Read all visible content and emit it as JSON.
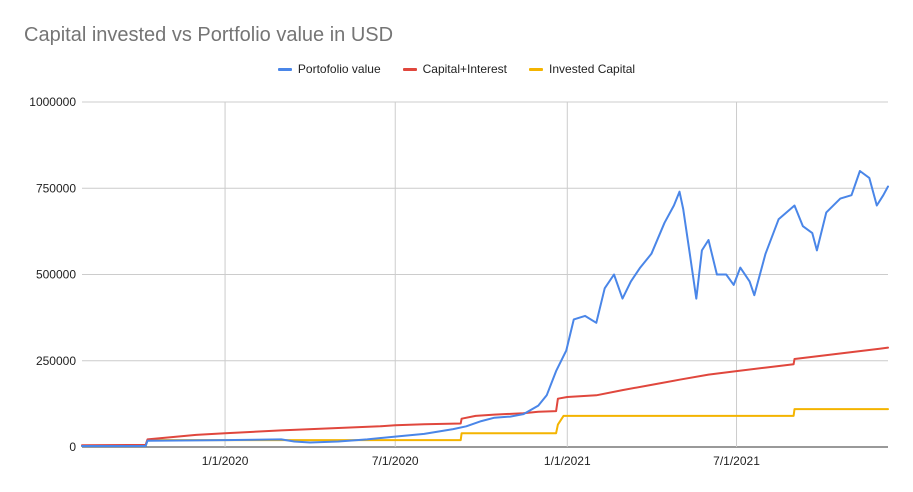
{
  "chart_data": {
    "type": "line",
    "title": "Capital invested vs Portfolio value in USD",
    "xlabel": "",
    "ylabel": "",
    "x_range": [
      "2019-08-01",
      "2021-12-10"
    ],
    "ylim": [
      0,
      1000000
    ],
    "y_ticks": [
      0,
      250000,
      500000,
      750000,
      1000000
    ],
    "x_ticks": [
      "1/1/2020",
      "7/1/2020",
      "1/1/2021",
      "7/1/2021"
    ],
    "x_tick_dates": [
      "2020-01-01",
      "2020-07-01",
      "2021-01-01",
      "2021-07-01"
    ],
    "grid": true,
    "legend_position": "top-center",
    "series": [
      {
        "name": "Portofolio value",
        "color": "#4a86e8",
        "points": [
          [
            "2019-08-01",
            3000
          ],
          [
            "2019-10-08",
            3000
          ],
          [
            "2019-10-10",
            18000
          ],
          [
            "2019-12-01",
            19000
          ],
          [
            "2020-01-01",
            20000
          ],
          [
            "2020-02-01",
            21000
          ],
          [
            "2020-03-01",
            22000
          ],
          [
            "2020-03-15",
            16000
          ],
          [
            "2020-04-01",
            13000
          ],
          [
            "2020-05-01",
            16000
          ],
          [
            "2020-06-01",
            22000
          ],
          [
            "2020-07-01",
            30000
          ],
          [
            "2020-08-01",
            38000
          ],
          [
            "2020-09-01",
            52000
          ],
          [
            "2020-09-15",
            60000
          ],
          [
            "2020-10-01",
            75000
          ],
          [
            "2020-10-15",
            85000
          ],
          [
            "2020-11-01",
            88000
          ],
          [
            "2020-11-15",
            95000
          ],
          [
            "2020-12-01",
            120000
          ],
          [
            "2020-12-10",
            150000
          ],
          [
            "2020-12-20",
            220000
          ],
          [
            "2020-12-31",
            280000
          ],
          [
            "2021-01-08",
            370000
          ],
          [
            "2021-01-20",
            380000
          ],
          [
            "2021-02-01",
            360000
          ],
          [
            "2021-02-10",
            460000
          ],
          [
            "2021-02-20",
            500000
          ],
          [
            "2021-03-01",
            430000
          ],
          [
            "2021-03-10",
            480000
          ],
          [
            "2021-03-20",
            520000
          ],
          [
            "2021-04-01",
            560000
          ],
          [
            "2021-04-15",
            650000
          ],
          [
            "2021-04-25",
            700000
          ],
          [
            "2021-05-01",
            740000
          ],
          [
            "2021-05-05",
            690000
          ],
          [
            "2021-05-12",
            560000
          ],
          [
            "2021-05-19",
            430000
          ],
          [
            "2021-05-25",
            570000
          ],
          [
            "2021-06-01",
            600000
          ],
          [
            "2021-06-10",
            500000
          ],
          [
            "2021-06-20",
            500000
          ],
          [
            "2021-06-28",
            470000
          ],
          [
            "2021-07-05",
            520000
          ],
          [
            "2021-07-15",
            480000
          ],
          [
            "2021-07-20",
            440000
          ],
          [
            "2021-08-01",
            560000
          ],
          [
            "2021-08-15",
            660000
          ],
          [
            "2021-09-01",
            700000
          ],
          [
            "2021-09-10",
            640000
          ],
          [
            "2021-09-20",
            620000
          ],
          [
            "2021-09-25",
            570000
          ],
          [
            "2021-10-05",
            680000
          ],
          [
            "2021-10-20",
            720000
          ],
          [
            "2021-11-01",
            730000
          ],
          [
            "2021-11-10",
            800000
          ],
          [
            "2021-11-20",
            780000
          ],
          [
            "2021-11-28",
            700000
          ],
          [
            "2021-12-05",
            730000
          ],
          [
            "2021-12-10",
            755000
          ]
        ]
      },
      {
        "name": "Capital+Interest",
        "color": "#e0473d",
        "points": [
          [
            "2019-08-01",
            5000
          ],
          [
            "2019-10-08",
            6000
          ],
          [
            "2019-10-10",
            22000
          ],
          [
            "2019-12-01",
            35000
          ],
          [
            "2020-01-01",
            40000
          ],
          [
            "2020-03-01",
            48000
          ],
          [
            "2020-05-01",
            55000
          ],
          [
            "2020-06-15",
            60000
          ],
          [
            "2020-07-01",
            63000
          ],
          [
            "2020-08-01",
            66000
          ],
          [
            "2020-09-09",
            68000
          ],
          [
            "2020-09-10",
            82000
          ],
          [
            "2020-09-25",
            90000
          ],
          [
            "2020-10-15",
            94000
          ],
          [
            "2020-11-15",
            98000
          ],
          [
            "2020-12-01",
            102000
          ],
          [
            "2020-12-20",
            104000
          ],
          [
            "2020-12-22",
            140000
          ],
          [
            "2021-01-01",
            145000
          ],
          [
            "2021-02-01",
            150000
          ],
          [
            "2021-03-01",
            165000
          ],
          [
            "2021-04-01",
            180000
          ],
          [
            "2021-05-01",
            195000
          ],
          [
            "2021-06-01",
            210000
          ],
          [
            "2021-07-01",
            220000
          ],
          [
            "2021-08-01",
            230000
          ],
          [
            "2021-08-31",
            240000
          ],
          [
            "2021-09-01",
            255000
          ],
          [
            "2021-10-01",
            265000
          ],
          [
            "2021-11-01",
            275000
          ],
          [
            "2021-12-01",
            285000
          ],
          [
            "2021-12-10",
            288000
          ]
        ]
      },
      {
        "name": "Invested Capital",
        "color": "#f4b400",
        "points": [
          [
            "2019-08-01",
            3000
          ],
          [
            "2019-10-08",
            3000
          ],
          [
            "2019-10-10",
            20000
          ],
          [
            "2020-07-01",
            20000
          ],
          [
            "2020-09-09",
            20000
          ],
          [
            "2020-09-10",
            40000
          ],
          [
            "2020-12-20",
            40000
          ],
          [
            "2020-12-22",
            65000
          ],
          [
            "2020-12-28",
            90000
          ],
          [
            "2021-08-31",
            90000
          ],
          [
            "2021-09-01",
            110000
          ],
          [
            "2021-12-10",
            110000
          ]
        ]
      }
    ]
  }
}
